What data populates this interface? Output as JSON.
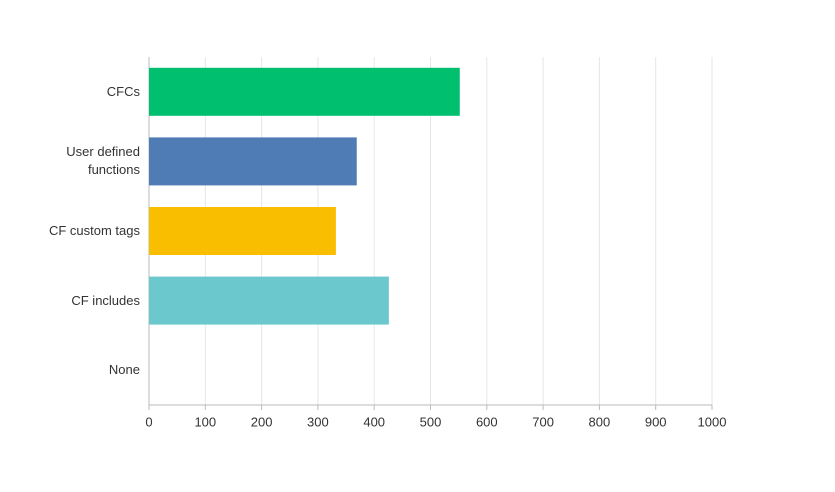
{
  "chart_data": {
    "type": "bar",
    "orientation": "horizontal",
    "categories": [
      "CFCs",
      "User defined functions",
      "CF custom tags",
      "CF includes",
      "None"
    ],
    "values": [
      552,
      369,
      332,
      426,
      0
    ],
    "colors": [
      "#00bf6f",
      "#507cb6",
      "#f9be00",
      "#6bc8cd",
      "#d25f90"
    ],
    "xlim": [
      0,
      1000
    ],
    "xticks": [
      0,
      100,
      200,
      300,
      400,
      500,
      600,
      700,
      800,
      900,
      1000
    ],
    "grid": true
  }
}
